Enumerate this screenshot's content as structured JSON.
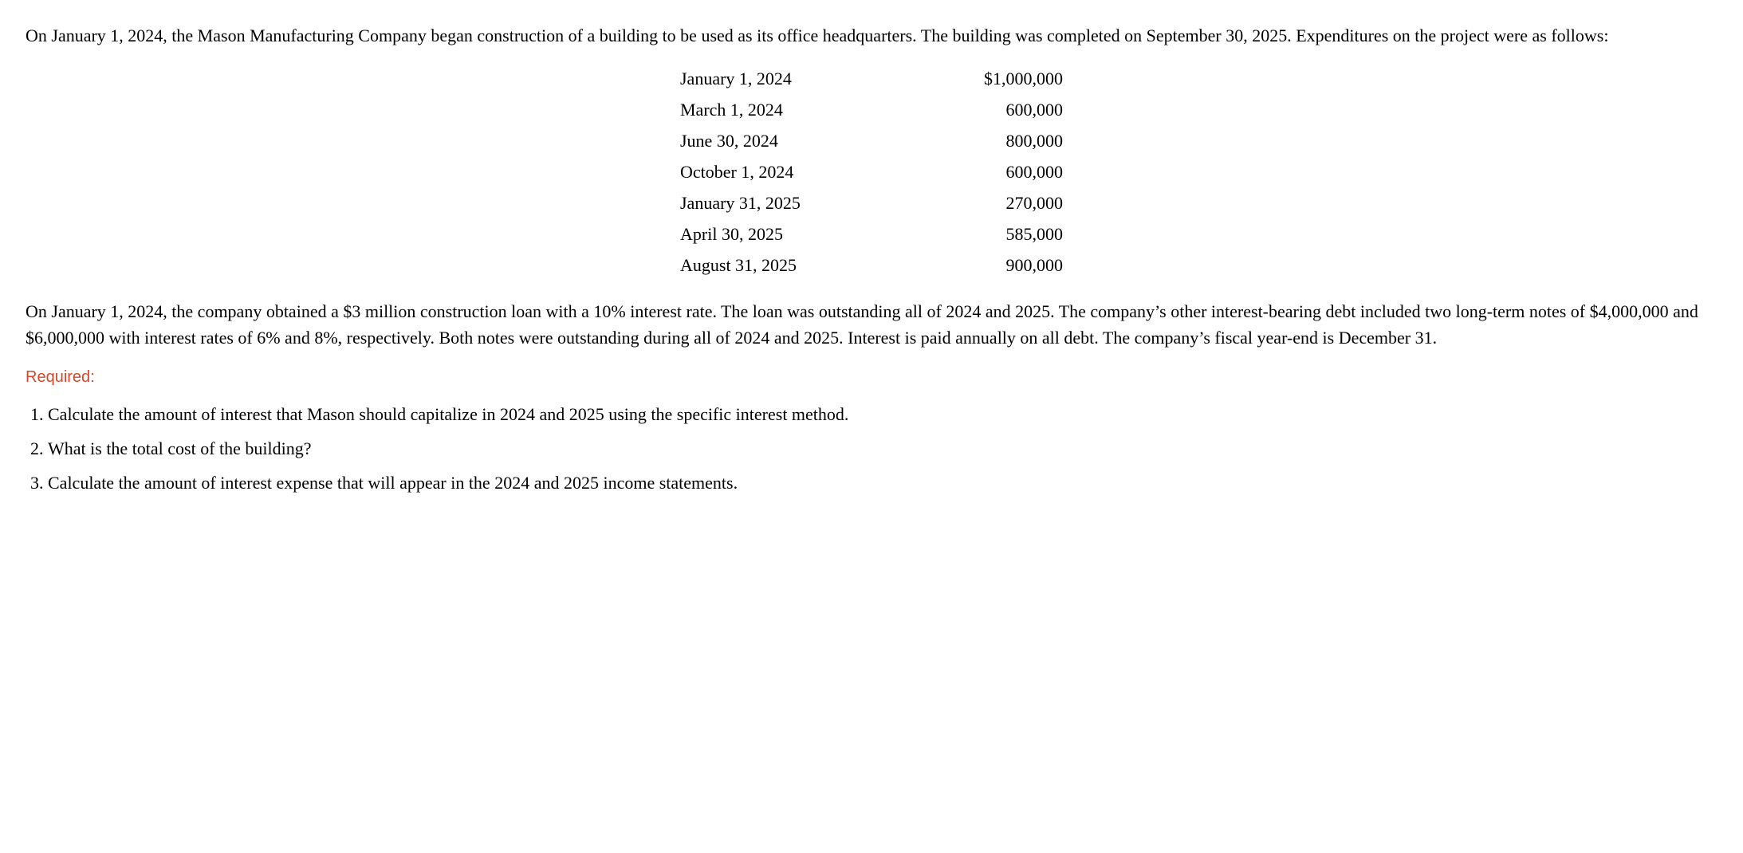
{
  "intro_paragraph": "On January 1, 2024, the Mason Manufacturing Company began construction of a building to be used as its office headquarters. The building was completed on September 30, 2025. Expenditures on the project were as follows:",
  "expenditures": {
    "rows": [
      {
        "date": "January 1, 2024",
        "amount": "$1,000,000"
      },
      {
        "date": "March 1, 2024",
        "amount": "600,000"
      },
      {
        "date": "June 30, 2024",
        "amount": "800,000"
      },
      {
        "date": "October 1, 2024",
        "amount": "600,000"
      },
      {
        "date": "January 31, 2025",
        "amount": "270,000"
      },
      {
        "date": "April 30, 2025",
        "amount": "585,000"
      },
      {
        "date": "August 31, 2025",
        "amount": "900,000"
      }
    ]
  },
  "loan_paragraph": "On January 1, 2024, the company obtained a $3 million construction loan with a 10% interest rate. The loan was outstanding all of 2024 and 2025. The company’s other interest-bearing debt included two long-term notes of $4,000,000 and $6,000,000 with interest rates of 6% and 8%, respectively. Both notes were outstanding during all of 2024 and 2025. Interest is paid annually on all debt. The company’s fiscal year-end is December 31.",
  "required_heading": "Required:",
  "requirements": [
    "Calculate the amount of interest that Mason should capitalize in 2024 and 2025 using the specific interest method.",
    "What is the total cost of the building?",
    "Calculate the amount of interest expense that will appear in the 2024 and 2025 income statements."
  ]
}
